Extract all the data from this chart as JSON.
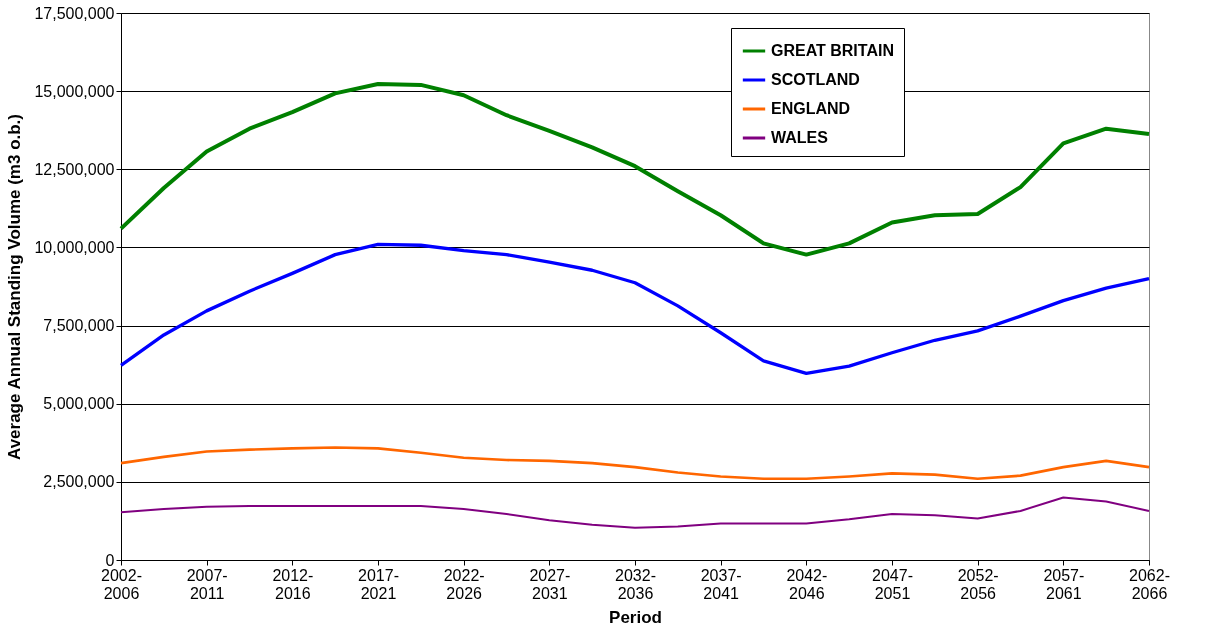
{
  "chart_data": {
    "type": "line",
    "xlabel": "Period",
    "ylabel": "Average Annual Standing Volume (m3 o.b.)",
    "categories": [
      "2002-2006",
      null,
      "2007-2011",
      null,
      "2012-2016",
      null,
      "2017-2021",
      null,
      "2022-2026",
      null,
      "2027-2031",
      null,
      "2032-2036",
      null,
      "2037-2041",
      null,
      "2042-2046",
      null,
      "2047-2051",
      null,
      "2052-2056",
      null,
      "2057-2061",
      null,
      "2062-2066"
    ],
    "series": [
      {
        "name": "GREAT BRITAIN",
        "color": "#008000",
        "values": [
          10600000,
          11900000,
          13070000,
          13800000,
          14330000,
          14930000,
          15230000,
          15200000,
          14870000,
          14230000,
          13730000,
          13200000,
          12600000,
          11800000,
          11030000,
          10130000,
          9770000,
          10130000,
          10800000,
          11030000,
          11070000,
          11930000,
          13330000,
          13800000,
          13630000
        ]
      },
      {
        "name": "SCOTLAND",
        "color": "#0000ff",
        "values": [
          6230000,
          7200000,
          7970000,
          8600000,
          9170000,
          9770000,
          10100000,
          10070000,
          9900000,
          9770000,
          9530000,
          9270000,
          8870000,
          8130000,
          7270000,
          6370000,
          5970000,
          6200000,
          6630000,
          7030000,
          7330000,
          7800000,
          8300000,
          8700000,
          9000000
        ]
      },
      {
        "name": "ENGLAND",
        "color": "#ff6600",
        "values": [
          3100000,
          3300000,
          3470000,
          3530000,
          3570000,
          3600000,
          3570000,
          3430000,
          3270000,
          3200000,
          3170000,
          3100000,
          2970000,
          2800000,
          2670000,
          2600000,
          2600000,
          2670000,
          2770000,
          2730000,
          2600000,
          2700000,
          2970000,
          3170000,
          2970000
        ]
      },
      {
        "name": "WALES",
        "color": "#800080",
        "values": [
          1530000,
          1630000,
          1700000,
          1730000,
          1730000,
          1730000,
          1730000,
          1730000,
          1630000,
          1470000,
          1270000,
          1130000,
          1030000,
          1070000,
          1170000,
          1170000,
          1170000,
          1300000,
          1470000,
          1430000,
          1330000,
          1570000,
          2000000,
          1870000,
          1570000
        ]
      }
    ],
    "ylim": [
      0,
      17500000
    ],
    "yticks": [
      0,
      {
        "value": 2500000,
        "label": "2,500,000"
      },
      {
        "value": 5000000,
        "label": "5,000,000"
      },
      {
        "value": 7500000,
        "label": "7,500,000"
      },
      {
        "value": 10000000,
        "label": "10,000,000"
      },
      {
        "value": 12500000,
        "label": "12,500,000"
      },
      {
        "value": 15000000,
        "label": "15,000,000"
      },
      {
        "value": 17500000,
        "label": "17,500,000"
      }
    ],
    "grid": "y",
    "legend": "top right",
    "line_style": "solid",
    "marker": "none"
  }
}
